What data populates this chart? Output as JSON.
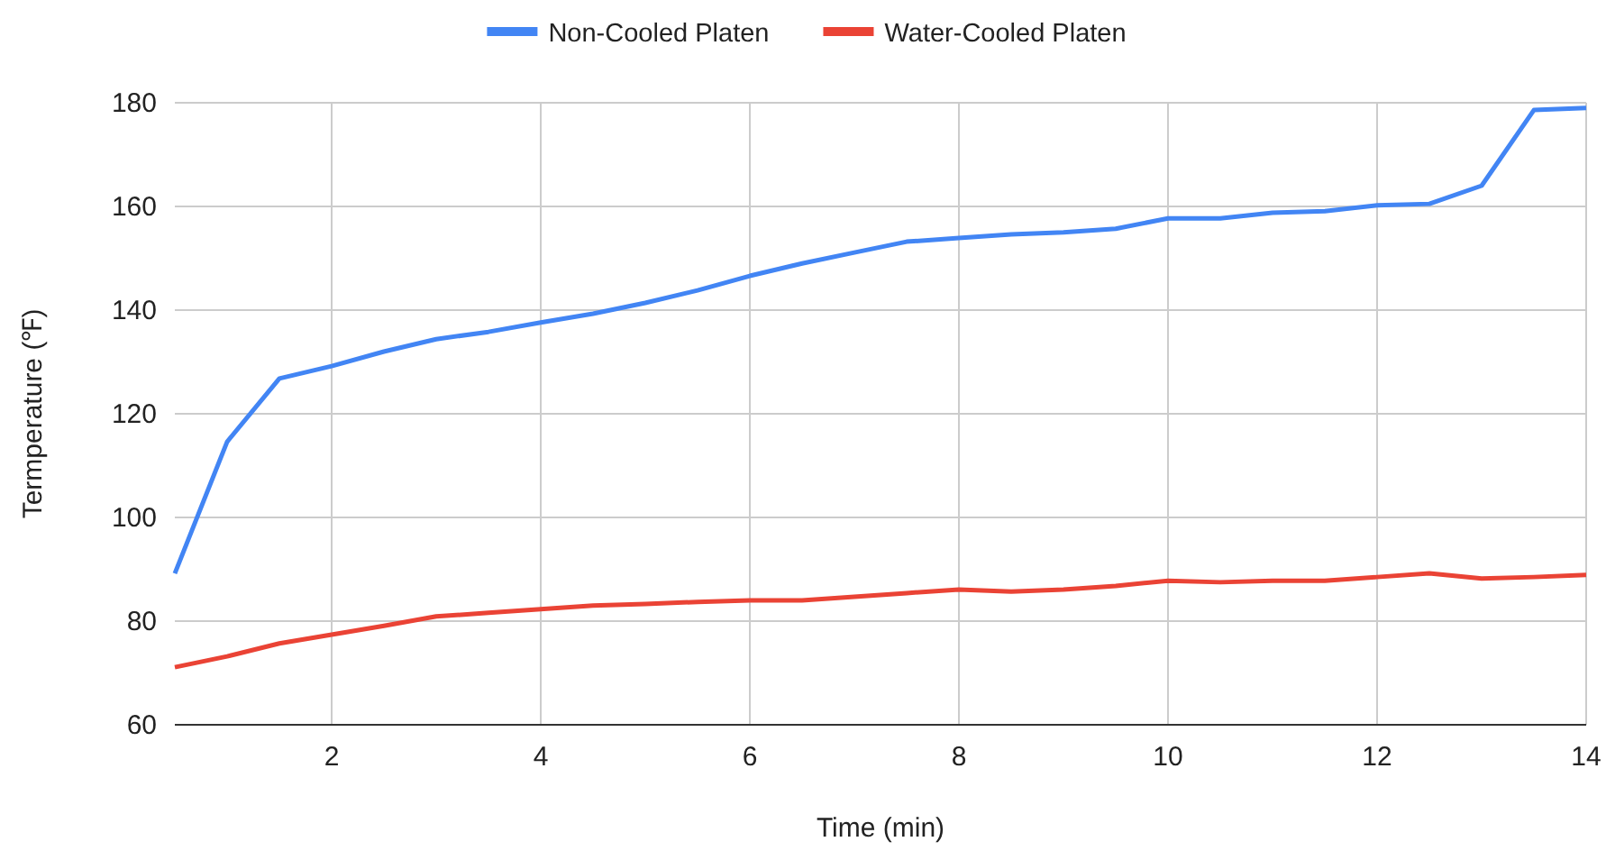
{
  "chart_data": {
    "type": "line",
    "xlabel": "Time (min)",
    "ylabel": "Termperature (℉)",
    "x": [
      0.5,
      1,
      1.5,
      2,
      2.5,
      3,
      3.5,
      4,
      4.5,
      5,
      5.5,
      6,
      6.5,
      7,
      7.5,
      8,
      8.5,
      9,
      9.5,
      10,
      10.5,
      11,
      11.5,
      12,
      12.5,
      13,
      13.5,
      14
    ],
    "series": [
      {
        "name": "Non-Cooled Platen",
        "color": "#4285f4",
        "values": [
          89.2,
          114.6,
          126.8,
          129.2,
          132,
          134.4,
          135.8,
          137.6,
          139.3,
          141.4,
          143.8,
          146.6,
          149,
          151.1,
          153.2,
          153.9,
          154.6,
          155,
          155.7,
          157.7,
          157.7,
          158.8,
          159.1,
          160.2,
          160.5,
          164,
          178.6,
          179
        ]
      },
      {
        "name": "Water-Cooled Platen",
        "color": "#ea4335",
        "values": [
          71.1,
          73.2,
          75.7,
          77.4,
          79.1,
          80.9,
          81.6,
          82.3,
          83,
          83.3,
          83.7,
          84,
          84,
          84.7,
          85.4,
          86.1,
          85.7,
          86.1,
          86.8,
          87.8,
          87.5,
          87.8,
          87.8,
          88.5,
          89.2,
          88.2,
          88.5,
          88.9
        ]
      }
    ],
    "xlim": [
      0.5,
      14
    ],
    "xticks": [
      2,
      4,
      6,
      8,
      10,
      12,
      14
    ],
    "ylim": [
      60,
      180
    ],
    "yticks": [
      60,
      80,
      100,
      120,
      140,
      160,
      180
    ],
    "grid": true,
    "legend": "top",
    "marker": "none",
    "line_style": "solid"
  }
}
